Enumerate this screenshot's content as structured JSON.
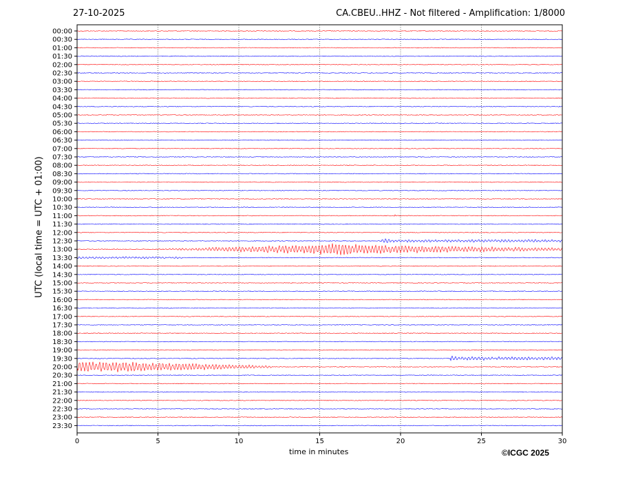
{
  "header": {
    "date": "27-10-2025",
    "title": "CA.CBEU..HHZ - Not filtered - Amplification: 1/8000"
  },
  "footer": {
    "copyright": "©ICGC 2025"
  },
  "chart_data": {
    "type": "line",
    "title": "CA.CBEU..HHZ - Not filtered - Amplification: 1/8000",
    "xlabel": "time in minutes",
    "ylabel": "UTC (local time = UTC + 01:00)",
    "xlim": [
      0,
      30
    ],
    "x_ticks": [
      "0",
      "5",
      "10",
      "15",
      "20",
      "25",
      "30"
    ],
    "x_tick_values": [
      0,
      5,
      10,
      15,
      20,
      25,
      30
    ],
    "grid": "vertical dotted lines at each x tick",
    "colors": {
      "even_rows": "#ff0000",
      "odd_rows": "#0000ff"
    },
    "rows": [
      "00:00",
      "00:30",
      "01:00",
      "01:30",
      "02:00",
      "02:30",
      "03:00",
      "03:30",
      "04:00",
      "04:30",
      "05:00",
      "05:30",
      "06:00",
      "06:30",
      "07:00",
      "07:30",
      "08:00",
      "08:30",
      "09:00",
      "09:30",
      "10:00",
      "10:30",
      "11:00",
      "11:30",
      "12:00",
      "12:30",
      "13:00",
      "13:30",
      "14:00",
      "14:30",
      "15:00",
      "15:30",
      "16:00",
      "16:30",
      "17:00",
      "17:30",
      "18:00",
      "18:30",
      "19:00",
      "19:30",
      "20:00",
      "20:30",
      "21:00",
      "21:30",
      "22:00",
      "22:30",
      "23:00",
      "23:30"
    ],
    "events": [
      {
        "row": "11:00",
        "start_min": 19.6,
        "end_min": 19.7,
        "amplitude": 0.3
      },
      {
        "row": "12:30",
        "start_min": 18.8,
        "end_min": 30,
        "amplitude": 0.35
      },
      {
        "row": "13:00",
        "start_min": 4.5,
        "end_min": 30,
        "amplitude": 1.0
      },
      {
        "row": "13:30",
        "start_min": 0,
        "end_min": 6.5,
        "amplitude": 0.25
      },
      {
        "row": "19:30",
        "start_min": 23.1,
        "end_min": 30,
        "amplitude": 0.45
      },
      {
        "row": "20:00",
        "start_min": 0,
        "end_min": 12,
        "amplitude": 0.95
      }
    ]
  }
}
